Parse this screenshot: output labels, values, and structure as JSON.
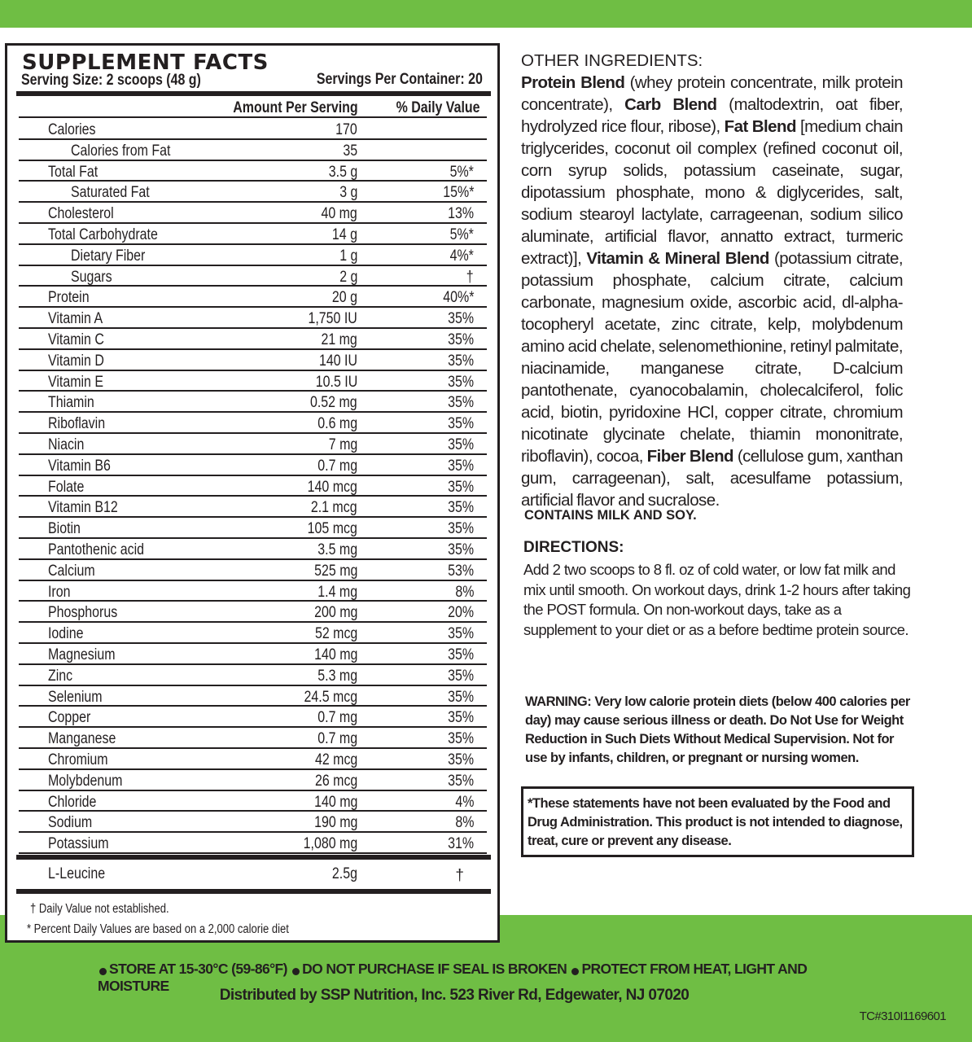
{
  "colors": {
    "brand_green": "#6fbe44",
    "ink": "#231f20"
  },
  "facts": {
    "title": "SUPPLEMENT FACTS",
    "serving_size": "Serving Size: 2 scoops (48 g)",
    "servings_per_container": "Servings Per Container: 20",
    "col_amount": "Amount Per Serving",
    "col_dv": "% Daily Value",
    "rows": [
      {
        "label": "Calories",
        "amount": "170",
        "dv": "",
        "indent": false
      },
      {
        "label": "Calories from Fat",
        "amount": "35",
        "dv": "",
        "indent": true
      },
      {
        "label": "Total Fat",
        "amount": "3.5 g",
        "dv": "5%*",
        "indent": false
      },
      {
        "label": "Saturated Fat",
        "amount": "3 g",
        "dv": "15%*",
        "indent": true
      },
      {
        "label": "Cholesterol",
        "amount": "40 mg",
        "dv": "13%",
        "indent": false
      },
      {
        "label": "Total Carbohydrate",
        "amount": "14 g",
        "dv": "5%*",
        "indent": false
      },
      {
        "label": "Dietary Fiber",
        "amount": "1 g",
        "dv": "4%*",
        "indent": true
      },
      {
        "label": "Sugars",
        "amount": "2 g",
        "dv": "†",
        "indent": true
      },
      {
        "label": "Protein",
        "amount": "20 g",
        "dv": "40%*",
        "indent": false
      },
      {
        "label": "Vitamin A",
        "amount": "1,750 IU",
        "dv": "35%",
        "indent": false
      },
      {
        "label": "Vitamin C",
        "amount": "21 mg",
        "dv": "35%",
        "indent": false
      },
      {
        "label": "Vitamin D",
        "amount": "140 IU",
        "dv": "35%",
        "indent": false
      },
      {
        "label": "Vitamin E",
        "amount": "10.5 IU",
        "dv": "35%",
        "indent": false
      },
      {
        "label": "Thiamin",
        "amount": "0.52 mg",
        "dv": "35%",
        "indent": false
      },
      {
        "label": "Riboflavin",
        "amount": "0.6 mg",
        "dv": "35%",
        "indent": false
      },
      {
        "label": "Niacin",
        "amount": "7 mg",
        "dv": "35%",
        "indent": false
      },
      {
        "label": "Vitamin B6",
        "amount": "0.7 mg",
        "dv": "35%",
        "indent": false
      },
      {
        "label": "Folate",
        "amount": "140 mcg",
        "dv": "35%",
        "indent": false
      },
      {
        "label": "Vitamin B12",
        "amount": "2.1 mcg",
        "dv": "35%",
        "indent": false
      },
      {
        "label": "Biotin",
        "amount": "105 mcg",
        "dv": "35%",
        "indent": false
      },
      {
        "label": "Pantothenic acid",
        "amount": "3.5 mg",
        "dv": "35%",
        "indent": false
      },
      {
        "label": "Calcium",
        "amount": "525 mg",
        "dv": "53%",
        "indent": false
      },
      {
        "label": "Iron",
        "amount": "1.4 mg",
        "dv": "8%",
        "indent": false
      },
      {
        "label": "Phosphorus",
        "amount": "200 mg",
        "dv": "20%",
        "indent": false
      },
      {
        "label": "Iodine",
        "amount": "52 mcg",
        "dv": "35%",
        "indent": false
      },
      {
        "label": "Magnesium",
        "amount": "140 mg",
        "dv": "35%",
        "indent": false
      },
      {
        "label": "Zinc",
        "amount": "5.3 mg",
        "dv": "35%",
        "indent": false
      },
      {
        "label": "Selenium",
        "amount": "24.5 mcg",
        "dv": "35%",
        "indent": false
      },
      {
        "label": "Copper",
        "amount": "0.7 mg",
        "dv": "35%",
        "indent": false
      },
      {
        "label": "Manganese",
        "amount": "0.7 mg",
        "dv": "35%",
        "indent": false
      },
      {
        "label": "Chromium",
        "amount": "42 mcg",
        "dv": "35%",
        "indent": false
      },
      {
        "label": "Molybdenum",
        "amount": "26 mcg",
        "dv": "35%",
        "indent": false
      },
      {
        "label": "Chloride",
        "amount": "140 mg",
        "dv": "4%",
        "indent": false
      },
      {
        "label": "Sodium",
        "amount": "190 mg",
        "dv": "8%",
        "indent": false
      },
      {
        "label": "Potassium",
        "amount": "1,080 mg",
        "dv": "31%",
        "indent": false
      }
    ],
    "leucine": {
      "label": "L-Leucine",
      "amount": "2.5g",
      "dv": "†"
    },
    "footnote_dagger": "† Daily Value not established.",
    "footnote_star": "* Percent Daily Values are based on a 2,000 calorie diet"
  },
  "other_ingredients": {
    "title": "OTHER INGREDIENTS:",
    "parts": [
      {
        "b": "Protein Blend",
        "t": " (whey protein concentrate, milk protein concentrate), "
      },
      {
        "b": "Carb Blend",
        "t": " (maltodextrin, oat fiber, hydrolyzed rice flour, ribose), "
      },
      {
        "b": "Fat Blend",
        "t": " [medium chain triglycerides, coconut oil complex (refined coconut oil, corn syrup solids, potassium caseinate, sugar, dipotassium phosphate, mono & diglycerides, salt, sodium stearoyl lactylate, carrageenan, sodium silico aluminate, artificial flavor, annatto extract, turmeric extract)], "
      },
      {
        "b": "Vitamin & Mineral Blend",
        "t": " (potassium citrate, potassium phosphate, calcium citrate, calcium carbonate, magnesium oxide, ascorbic acid, dl-alpha-tocopheryl acetate, zinc citrate, kelp, molybdenum amino acid chelate, selenomethionine, retinyl palmitate, niacinamide, manganese citrate, D-calcium pantothenate, cyanocobalamin, cholecalciferol, folic acid, biotin, pyridoxine HCl, copper citrate, chromium nicotinate glycinate chelate, thiamin mononitrate, riboflavin), cocoa, "
      },
      {
        "b": "Fiber Blend",
        "t": " (cellulose gum, xanthan gum, carrageenan), salt, acesulfame potassium, artificial flavor and sucralose."
      }
    ]
  },
  "allergen": "CONTAINS MILK AND SOY.",
  "directions": {
    "title": "DIRECTIONS:",
    "text": "Add 2 two scoops to 8 fl. oz of cold water, or low fat milk and mix until smooth.  On workout days, drink 1-2 hours after taking the POST formula.  On non-workout days, take as a supplement to your diet or as a before bedtime protein source."
  },
  "warning": "WARNING: Very low calorie protein diets (below 400 calories per day) may cause serious illness or death. Do Not Use for Weight Reduction in Such Diets Without Medical Supervision. Not for use by infants, children, or pregnant or nursing women.",
  "disclaimer": "*These statements have not been evaluated by the Food and Drug Administration.  This product is not intended to diagnose, treat, cure or prevent any disease.",
  "footer": {
    "notices": [
      "STORE AT 15-30°C (59-86°F)",
      "DO NOT PURCHASE IF SEAL IS BROKEN",
      "PROTECT FROM HEAT, LIGHT AND MOISTURE"
    ],
    "distributor": "Distributed by SSP Nutrition, Inc.  523 River Rd, Edgewater, NJ  07020",
    "code": "TC#310I1169601"
  }
}
